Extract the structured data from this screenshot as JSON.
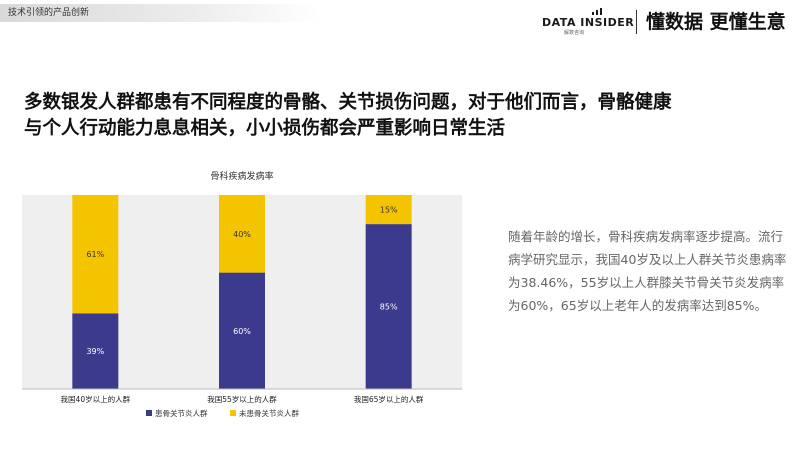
{
  "header": {
    "section_tag": "技术引领的产品创新",
    "brand_name": "DATA INSIDER",
    "brand_sub": "解数咨询",
    "slogan": "懂数据 更懂生意"
  },
  "headline": {
    "line1": "多数银发人群都患有不同程度的骨骼、关节损伤问题，对于他们而言，骨骼健康",
    "line2": "与个人行动能力息息相关，小小损伤都会严重影响日常生活"
  },
  "side_text": "随着年龄的增长，骨科疾病发病率逐步提高。流行病学研究显示，我国40岁及以上人群关节炎患病率为38.46%，55岁以上人群膝关节骨关节炎发病率为60%，65岁以上老年人的发病率达到85%。",
  "colors": {
    "affected": "#3b3a8c",
    "unaffected": "#f5c400",
    "plot_bg": "#efefef"
  },
  "chart_data": {
    "type": "bar",
    "stacked": true,
    "title": "骨科疾病发病率",
    "categories": [
      "我国40岁以上的人群",
      "我国55岁以上的人群",
      "我国65岁以上的人群"
    ],
    "series": [
      {
        "name": "患骨关节炎人群",
        "values": [
          39,
          60,
          85
        ],
        "labels": [
          "39%",
          "60%",
          "85%"
        ]
      },
      {
        "name": "未患骨关节炎人群",
        "values": [
          61,
          40,
          15
        ],
        "labels": [
          "61%",
          "40%",
          "15%"
        ]
      }
    ],
    "ylim": [
      0,
      100
    ],
    "legend": "bottom"
  }
}
